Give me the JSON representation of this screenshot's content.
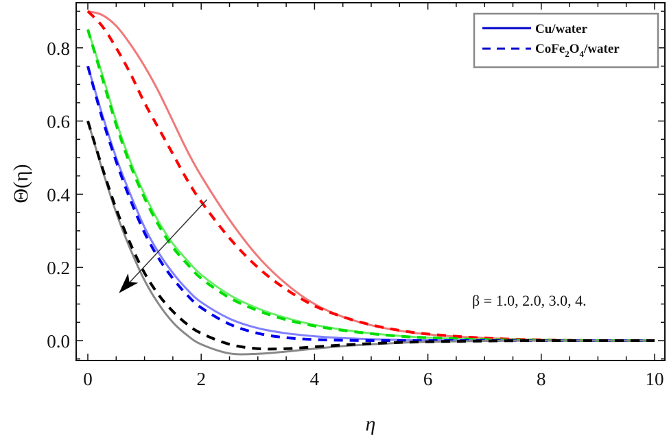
{
  "chart_data": {
    "type": "line",
    "title": "",
    "xlabel": "η",
    "ylabel": "Θ(η)",
    "xlim": [
      -0.2,
      10.2
    ],
    "ylim": [
      -0.07,
      0.92
    ],
    "xticks": [
      0,
      2,
      4,
      6,
      8,
      10
    ],
    "xtick_labels": [
      "0",
      "2",
      "4",
      "6",
      "8",
      "10"
    ],
    "yticks": [
      0.0,
      0.2,
      0.4,
      0.6,
      0.8
    ],
    "ytick_labels": [
      "0.0",
      "0.2",
      "0.4",
      "0.6",
      "0.8"
    ],
    "grid": false,
    "legend_position": "upper right",
    "legend": [
      {
        "label": "Cu/water",
        "style": "solid",
        "color": "#0000cc"
      },
      {
        "label": "CoFe2O4/water",
        "label_parts": [
          "CoFe",
          "2",
          "O",
          "4",
          "/water"
        ],
        "style": "dashed",
        "color": "#0000cc"
      }
    ],
    "annotation": {
      "text": "β = 1.0, 2.0, 3.0, 4.",
      "x": 6.75,
      "y": 0.18
    },
    "arrow": {
      "from": [
        2.1,
        0.385
      ],
      "to": [
        0.55,
        0.13
      ],
      "meaning": "increasing β"
    },
    "x": [
      0,
      0.25,
      0.5,
      0.75,
      1.0,
      1.25,
      1.5,
      1.75,
      2.0,
      2.5,
      3.0,
      3.5,
      4.0,
      4.5,
      5.0,
      5.5,
      6.0,
      7.0,
      8.0,
      9.0,
      10.0
    ],
    "series": [
      {
        "name": "β=1.0 Cu/water",
        "beta": 1.0,
        "fluid": "Cu/water",
        "style": "solid",
        "color": "#f07878",
        "values": [
          0.9,
          0.89,
          0.86,
          0.81,
          0.75,
          0.68,
          0.6,
          0.52,
          0.45,
          0.33,
          0.23,
          0.155,
          0.1,
          0.065,
          0.042,
          0.027,
          0.017,
          0.007,
          0.002,
          0.0,
          0.0
        ]
      },
      {
        "name": "β=1.0 CoFe2O4/water",
        "beta": 1.0,
        "fluid": "CoFe2O4/water",
        "style": "dashed",
        "color": "#ff0000",
        "values": [
          0.9,
          0.86,
          0.8,
          0.73,
          0.65,
          0.58,
          0.51,
          0.44,
          0.38,
          0.28,
          0.2,
          0.14,
          0.095,
          0.065,
          0.043,
          0.028,
          0.018,
          0.007,
          0.002,
          0.0,
          0.0
        ]
      },
      {
        "name": "β=2.0 Cu/water",
        "beta": 2.0,
        "fluid": "Cu/water",
        "style": "solid",
        "color": "#66ee66",
        "values": [
          0.85,
          0.73,
          0.6,
          0.49,
          0.4,
          0.325,
          0.265,
          0.22,
          0.18,
          0.125,
          0.088,
          0.062,
          0.043,
          0.03,
          0.02,
          0.013,
          0.008,
          0.003,
          0.001,
          0.0,
          0.0
        ]
      },
      {
        "name": "β=2.0 CoFe2O4/water",
        "beta": 2.0,
        "fluid": "CoFe2O4/water",
        "style": "dashed",
        "color": "#00dd00",
        "values": [
          0.85,
          0.72,
          0.59,
          0.48,
          0.39,
          0.315,
          0.255,
          0.21,
          0.17,
          0.117,
          0.082,
          0.057,
          0.04,
          0.028,
          0.019,
          0.012,
          0.008,
          0.003,
          0.001,
          0.0,
          0.0
        ]
      },
      {
        "name": "β=3.0 Cu/water",
        "beta": 3.0,
        "fluid": "Cu/water",
        "style": "solid",
        "color": "#8080ff",
        "values": [
          0.75,
          0.62,
          0.5,
          0.4,
          0.31,
          0.24,
          0.185,
          0.14,
          0.105,
          0.06,
          0.034,
          0.02,
          0.012,
          0.007,
          0.004,
          0.002,
          0.001,
          0.0,
          0.0,
          0.0,
          0.0
        ]
      },
      {
        "name": "β=3.0 CoFe2O4/water",
        "beta": 3.0,
        "fluid": "CoFe2O4/water",
        "style": "dashed",
        "color": "#0000ee",
        "values": [
          0.75,
          0.61,
          0.49,
          0.385,
          0.295,
          0.225,
          0.17,
          0.125,
          0.09,
          0.045,
          0.02,
          0.008,
          0.003,
          0.001,
          0.0,
          0.0,
          0.0,
          0.0,
          0.0,
          0.0,
          0.0
        ]
      },
      {
        "name": "β=4.0 Cu/water",
        "beta": 4.0,
        "fluid": "Cu/water",
        "style": "solid",
        "color": "#888888",
        "values": [
          0.6,
          0.47,
          0.35,
          0.25,
          0.165,
          0.1,
          0.05,
          0.015,
          -0.01,
          -0.035,
          -0.036,
          -0.03,
          -0.022,
          -0.015,
          -0.01,
          -0.006,
          -0.003,
          -0.001,
          0.0,
          0.0,
          0.0
        ]
      },
      {
        "name": "β=4.0 CoFe2O4/water",
        "beta": 4.0,
        "fluid": "CoFe2O4/water",
        "style": "dashed",
        "color": "#000000",
        "values": [
          0.6,
          0.475,
          0.36,
          0.265,
          0.185,
          0.125,
          0.08,
          0.045,
          0.02,
          -0.01,
          -0.022,
          -0.022,
          -0.017,
          -0.012,
          -0.008,
          -0.005,
          -0.003,
          -0.001,
          0.0,
          0.0,
          0.0
        ]
      }
    ]
  }
}
